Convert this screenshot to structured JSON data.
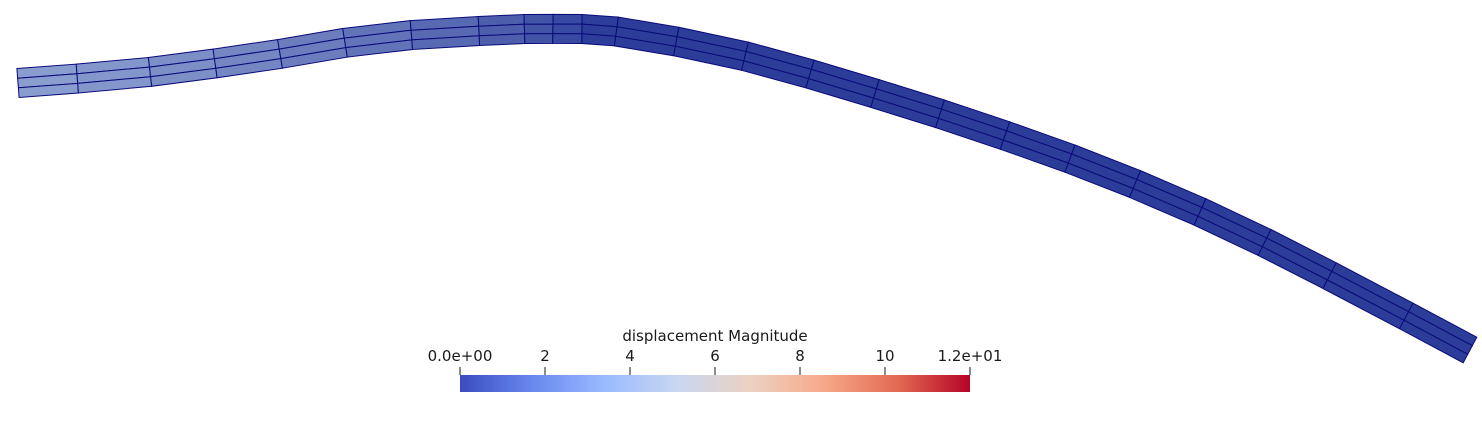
{
  "colorbar": {
    "title": "displacement Magnitude",
    "range": [
      0,
      12
    ],
    "ticks": [
      {
        "value": 0,
        "label": "0.0e+00"
      },
      {
        "value": 2,
        "label": "2"
      },
      {
        "value": 4,
        "label": "4"
      },
      {
        "value": 6,
        "label": "6"
      },
      {
        "value": 8,
        "label": "8"
      },
      {
        "value": 10,
        "label": "10"
      },
      {
        "value": 12,
        "label": "1.2e+01"
      }
    ],
    "colormap": [
      "#3b4cc0",
      "#6889ee",
      "#9abbff",
      "#c9d7f0",
      "#edd1c2",
      "#f7a889",
      "#e36a53",
      "#b40426"
    ]
  },
  "mesh": {
    "segments": 24,
    "layers": 3,
    "edge_color": "#0a0a7a",
    "face_colors": {
      "start": "#8a9dcf",
      "end": "#2b3d99"
    }
  }
}
